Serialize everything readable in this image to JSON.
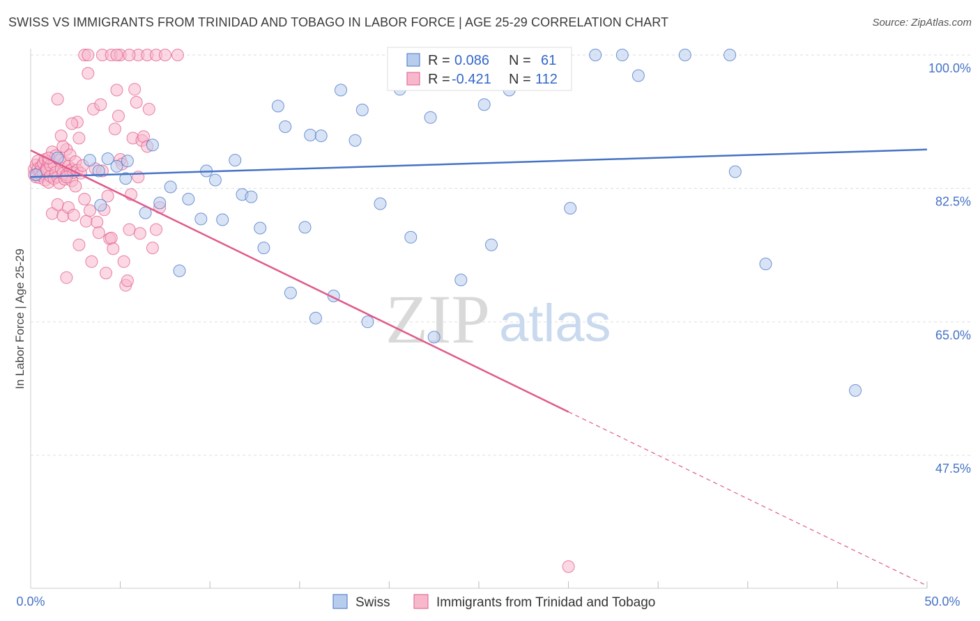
{
  "title": "SWISS VS IMMIGRANTS FROM TRINIDAD AND TOBAGO IN LABOR FORCE | AGE 25-29 CORRELATION CHART",
  "source": "Source: ZipAtlas.com",
  "watermark": {
    "zip": "ZIP",
    "atlas": "atlas"
  },
  "colors": {
    "swiss": "#4472c4",
    "swiss_fill": "#b8cdee",
    "trinidad": "#e05a8a",
    "trinidad_fill": "#f7b8cc",
    "grid": "#dddddd",
    "tick_label": "#4472c4"
  },
  "legend": {
    "rows": [
      {
        "r_label": "R =",
        "r_value": "0.086",
        "n_label": "N =",
        "n_value": "61"
      },
      {
        "r_label": "R =",
        "r_value": "-0.421",
        "n_label": "N =",
        "n_value": "112"
      }
    ]
  },
  "bottom_legend": [
    "Swiss",
    "Immigrants from Trinidad and Tobago"
  ],
  "chart_data": {
    "type": "scatter",
    "title": "SWISS VS IMMIGRANTS FROM TRINIDAD AND TOBAGO IN LABOR FORCE | AGE 25-29 CORRELATION CHART",
    "xlabel": "",
    "ylabel": "In Labor Force | Age 25-29",
    "xlim": [
      0,
      50
    ],
    "ylim": [
      30,
      102
    ],
    "x_tick_labels": [
      "0.0%",
      "50.0%"
    ],
    "y_ticks": [
      47.5,
      65.0,
      82.5,
      100.0
    ],
    "y_tick_labels": [
      "47.5%",
      "65.0%",
      "82.5%",
      "100.0%"
    ],
    "grid": true,
    "legend_position": "top-center",
    "series": [
      {
        "name": "Swiss",
        "trend": {
          "x": [
            0,
            50
          ],
          "y": [
            84.0,
            87.6
          ]
        },
        "points": [
          [
            0.3,
            84.3
          ],
          [
            1.5,
            86.5
          ],
          [
            3.3,
            86.2
          ],
          [
            3.8,
            84.8
          ],
          [
            3.9,
            80.3
          ],
          [
            4.3,
            86.4
          ],
          [
            4.8,
            85.4
          ],
          [
            5.3,
            83.8
          ],
          [
            5.4,
            86.1
          ],
          [
            6.4,
            79.3
          ],
          [
            6.8,
            88.2
          ],
          [
            7.2,
            80.6
          ],
          [
            7.8,
            82.7
          ],
          [
            8.3,
            71.7
          ],
          [
            8.8,
            81.1
          ],
          [
            9.5,
            78.5
          ],
          [
            9.8,
            84.8
          ],
          [
            10.3,
            83.6
          ],
          [
            10.7,
            78.4
          ],
          [
            11.4,
            86.2
          ],
          [
            11.8,
            81.7
          ],
          [
            12.3,
            81.4
          ],
          [
            12.8,
            77.3
          ],
          [
            13.0,
            74.7
          ],
          [
            13.8,
            93.3
          ],
          [
            14.2,
            90.6
          ],
          [
            14.5,
            68.8
          ],
          [
            15.3,
            77.4
          ],
          [
            15.6,
            89.5
          ],
          [
            15.9,
            65.5
          ],
          [
            16.2,
            89.4
          ],
          [
            16.9,
            68.4
          ],
          [
            17.3,
            95.4
          ],
          [
            18.1,
            88.8
          ],
          [
            18.5,
            92.8
          ],
          [
            18.8,
            65.0
          ],
          [
            19.5,
            80.5
          ],
          [
            20.3,
            97.9
          ],
          [
            20.6,
            95.5
          ],
          [
            21.2,
            76.1
          ],
          [
            22.0,
            96.5
          ],
          [
            22.3,
            91.8
          ],
          [
            22.5,
            63.0
          ],
          [
            23.0,
            100.0
          ],
          [
            24.0,
            70.5
          ],
          [
            24.4,
            100.0
          ],
          [
            25.3,
            93.5
          ],
          [
            25.7,
            75.1
          ],
          [
            26.0,
            100.0
          ],
          [
            26.7,
            95.4
          ],
          [
            28.2,
            100.0
          ],
          [
            29.6,
            100.0
          ],
          [
            30.1,
            79.9
          ],
          [
            31.5,
            100.0
          ],
          [
            33.9,
            97.3
          ],
          [
            36.5,
            100.0
          ],
          [
            39.0,
            100.0
          ],
          [
            39.3,
            84.7
          ],
          [
            41.0,
            72.6
          ],
          [
            46.0,
            56.0
          ],
          [
            33.0,
            100.0
          ]
        ]
      },
      {
        "name": "Immigrants from Trinidad and Tobago",
        "trend": {
          "x": [
            0,
            30
          ],
          "y": [
            87.5,
            53.2
          ]
        },
        "trend_dashed": {
          "x": [
            30,
            50
          ],
          "y": [
            53.2,
            30.4
          ]
        },
        "points": [
          [
            0.2,
            85.0
          ],
          [
            0.2,
            84.3
          ],
          [
            0.3,
            85.6
          ],
          [
            0.3,
            84.0
          ],
          [
            0.4,
            85.1
          ],
          [
            0.4,
            86.1
          ],
          [
            0.5,
            84.7
          ],
          [
            0.5,
            83.9
          ],
          [
            0.6,
            85.4
          ],
          [
            0.6,
            84.2
          ],
          [
            0.7,
            85.8
          ],
          [
            0.7,
            84.5
          ],
          [
            0.8,
            86.3
          ],
          [
            0.8,
            83.6
          ],
          [
            0.9,
            85.2
          ],
          [
            0.9,
            84.9
          ],
          [
            1.0,
            86.0
          ],
          [
            1.0,
            83.3
          ],
          [
            1.1,
            85.5
          ],
          [
            1.1,
            84.1
          ],
          [
            1.2,
            87.3
          ],
          [
            1.2,
            79.2
          ],
          [
            1.3,
            85.7
          ],
          [
            1.3,
            83.8
          ],
          [
            1.4,
            86.8
          ],
          [
            1.4,
            84.6
          ],
          [
            1.5,
            84.0
          ],
          [
            1.5,
            80.4
          ],
          [
            1.6,
            86.2
          ],
          [
            1.6,
            83.2
          ],
          [
            1.7,
            85.1
          ],
          [
            1.7,
            89.4
          ],
          [
            1.8,
            84.5
          ],
          [
            1.8,
            78.9
          ],
          [
            1.9,
            85.9
          ],
          [
            1.9,
            83.7
          ],
          [
            2.0,
            87.6
          ],
          [
            2.0,
            84.3
          ],
          [
            2.1,
            85.4
          ],
          [
            2.1,
            80.0
          ],
          [
            2.2,
            84.8
          ],
          [
            2.2,
            86.9
          ],
          [
            2.3,
            85.0
          ],
          [
            2.3,
            83.5
          ],
          [
            2.4,
            84.6
          ],
          [
            2.4,
            79.0
          ],
          [
            2.5,
            86.0
          ],
          [
            2.5,
            82.8
          ],
          [
            2.6,
            91.2
          ],
          [
            2.6,
            84.9
          ],
          [
            2.7,
            89.1
          ],
          [
            2.7,
            75.1
          ],
          [
            1.5,
            94.2
          ],
          [
            1.8,
            88.0
          ],
          [
            2.0,
            70.8
          ],
          [
            2.3,
            91.0
          ],
          [
            2.8,
            84.5
          ],
          [
            2.9,
            85.5
          ],
          [
            3.0,
            81.1
          ],
          [
            3.1,
            78.2
          ],
          [
            3.2,
            97.6
          ],
          [
            3.3,
            79.6
          ],
          [
            3.4,
            72.9
          ],
          [
            3.5,
            92.9
          ],
          [
            3.6,
            85.1
          ],
          [
            3.7,
            78.1
          ],
          [
            3.8,
            76.7
          ],
          [
            3.9,
            93.5
          ],
          [
            4.0,
            84.8
          ],
          [
            4.1,
            79.7
          ],
          [
            4.2,
            71.4
          ],
          [
            4.3,
            81.5
          ],
          [
            4.4,
            75.9
          ],
          [
            4.5,
            76.0
          ],
          [
            4.6,
            74.6
          ],
          [
            4.7,
            90.3
          ],
          [
            4.8,
            95.4
          ],
          [
            4.9,
            92.0
          ],
          [
            5.0,
            86.3
          ],
          [
            5.1,
            85.7
          ],
          [
            5.2,
            72.9
          ],
          [
            5.3,
            69.8
          ],
          [
            5.4,
            70.4
          ],
          [
            5.5,
            77.1
          ],
          [
            5.6,
            81.7
          ],
          [
            5.7,
            89.1
          ],
          [
            5.8,
            95.5
          ],
          [
            5.9,
            93.8
          ],
          [
            6.0,
            84.0
          ],
          [
            6.1,
            76.6
          ],
          [
            6.2,
            88.8
          ],
          [
            6.3,
            89.3
          ],
          [
            6.5,
            88.0
          ],
          [
            6.6,
            92.9
          ],
          [
            6.8,
            74.7
          ],
          [
            7.0,
            77.1
          ],
          [
            7.2,
            80.0
          ],
          [
            3.0,
            100.0
          ],
          [
            4.0,
            100.0
          ],
          [
            4.5,
            100.0
          ],
          [
            5.0,
            100.0
          ],
          [
            6.0,
            100.0
          ],
          [
            6.5,
            100.0
          ],
          [
            7.0,
            100.0
          ],
          [
            7.5,
            100.0
          ],
          [
            4.8,
            100.0
          ],
          [
            5.5,
            100.0
          ],
          [
            3.2,
            100.0
          ],
          [
            8.2,
            100.0
          ],
          [
            30.0,
            32.9
          ],
          [
            1.0,
            86.5
          ],
          [
            2.0,
            84.0
          ]
        ]
      }
    ]
  }
}
